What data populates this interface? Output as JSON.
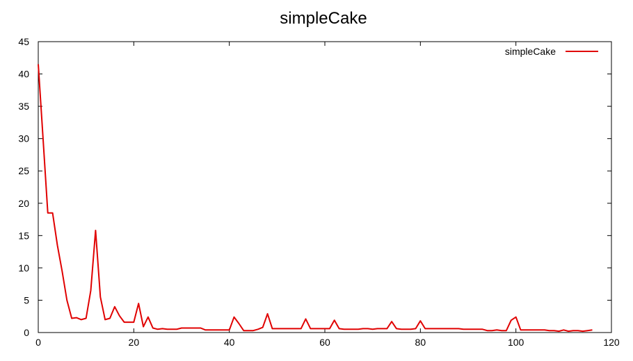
{
  "chart_data": {
    "type": "line",
    "title": "simpleCake",
    "xlabel": "",
    "ylabel": "",
    "xlim": [
      0,
      120
    ],
    "ylim": [
      0,
      45
    ],
    "xticks": [
      0,
      20,
      40,
      60,
      80,
      100,
      120
    ],
    "yticks": [
      0,
      5,
      10,
      15,
      20,
      25,
      30,
      35,
      40,
      45
    ],
    "grid": false,
    "legend_position": "top-right",
    "series": [
      {
        "name": "simpleCake",
        "color": "#e00000",
        "x": [
          0,
          1,
          2,
          3,
          4,
          5,
          6,
          7,
          8,
          9,
          10,
          11,
          12,
          13,
          14,
          15,
          16,
          17,
          18,
          19,
          20,
          21,
          22,
          23,
          24,
          25,
          26,
          27,
          28,
          29,
          30,
          31,
          32,
          33,
          34,
          35,
          36,
          37,
          38,
          39,
          40,
          41,
          42,
          43,
          44,
          45,
          46,
          47,
          48,
          49,
          50,
          51,
          52,
          53,
          54,
          55,
          56,
          57,
          58,
          59,
          60,
          61,
          62,
          63,
          64,
          65,
          66,
          67,
          68,
          69,
          70,
          71,
          72,
          73,
          74,
          75,
          76,
          77,
          78,
          79,
          80,
          81,
          82,
          83,
          84,
          85,
          86,
          87,
          88,
          89,
          90,
          91,
          92,
          93,
          94,
          95,
          96,
          97,
          98,
          99,
          100,
          101,
          102,
          103,
          104,
          105,
          106,
          107,
          108,
          109,
          110,
          111,
          112,
          113,
          114,
          115,
          116
        ],
        "y": [
          41.5,
          30,
          18.5,
          18.5,
          13.5,
          9.5,
          5,
          2.2,
          2.3,
          2.0,
          2.2,
          6.5,
          15.8,
          5.5,
          2.0,
          2.2,
          4.0,
          2.6,
          1.6,
          1.6,
          1.6,
          4.5,
          0.9,
          2.4,
          0.7,
          0.5,
          0.6,
          0.5,
          0.5,
          0.5,
          0.7,
          0.7,
          0.7,
          0.7,
          0.7,
          0.4,
          0.4,
          0.4,
          0.4,
          0.4,
          0.4,
          2.4,
          1.4,
          0.3,
          0.3,
          0.3,
          0.5,
          0.8,
          2.9,
          0.6,
          0.6,
          0.6,
          0.6,
          0.6,
          0.6,
          0.6,
          2.1,
          0.6,
          0.6,
          0.6,
          0.6,
          0.6,
          1.9,
          0.6,
          0.5,
          0.5,
          0.5,
          0.5,
          0.6,
          0.6,
          0.5,
          0.6,
          0.6,
          0.6,
          1.7,
          0.6,
          0.5,
          0.5,
          0.5,
          0.6,
          1.8,
          0.6,
          0.6,
          0.6,
          0.6,
          0.6,
          0.6,
          0.6,
          0.6,
          0.5,
          0.5,
          0.5,
          0.5,
          0.5,
          0.3,
          0.3,
          0.4,
          0.3,
          0.3,
          1.9,
          2.4,
          0.4,
          0.4,
          0.4,
          0.4,
          0.4,
          0.4,
          0.3,
          0.3,
          0.2,
          0.4,
          0.2,
          0.3,
          0.3,
          0.2,
          0.3,
          0.4
        ]
      }
    ]
  }
}
